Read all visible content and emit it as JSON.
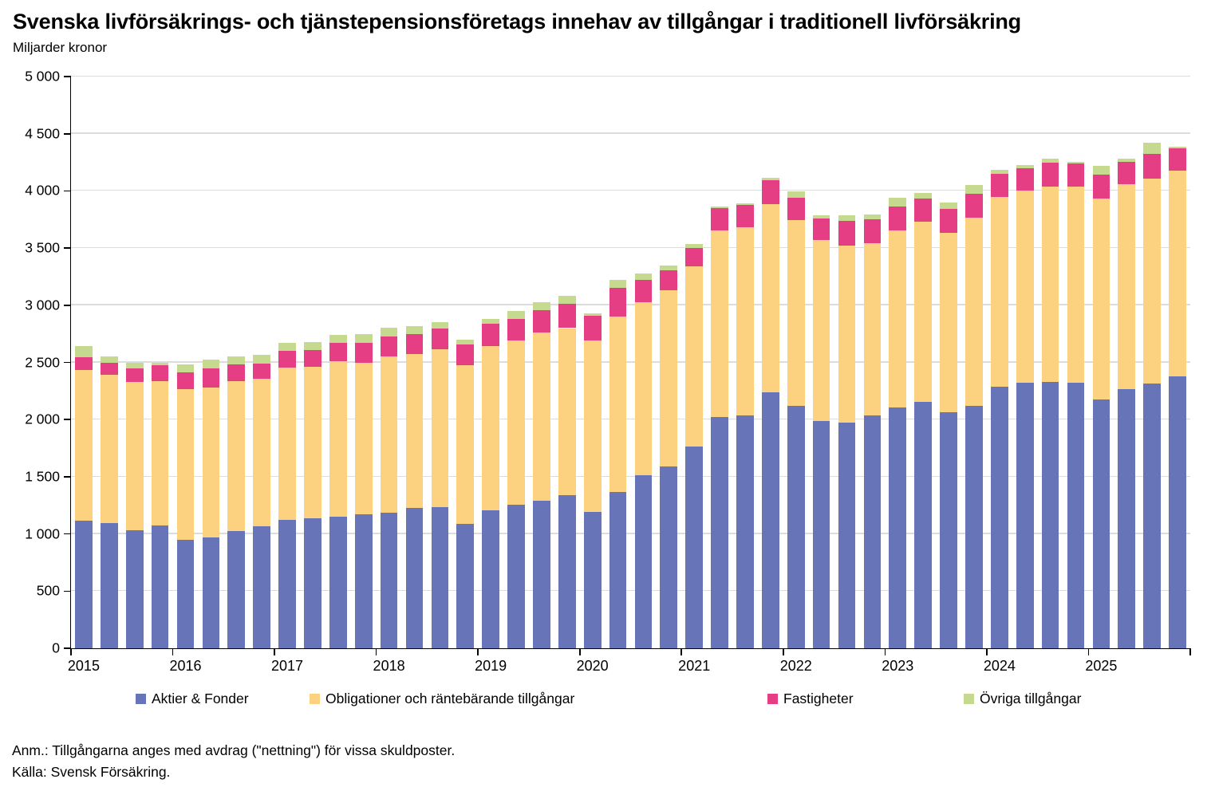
{
  "title": "Svenska livförsäkrings- och tjänstepensionsföretags innehav av tillgångar i traditionell livförsäkring",
  "subtitle": "Miljarder kronor",
  "notes": {
    "line1": "Anm.: Tillgångarna anges med avdrag (\"nettning\") för vissa skuldposter.",
    "line2": "Källa: Svensk Försäkring."
  },
  "colors": {
    "aktier": "#6774B8",
    "obligationer": "#FCD280",
    "fastigheter": "#E63E84",
    "ovriga": "#C5D98F",
    "gridline": "#DCDCDC",
    "axis": "#000000"
  },
  "chart_data": {
    "type": "bar",
    "stacked": true,
    "title": "Svenska livförsäkrings- och tjänstepensionsföretags innehav av tillgångar i traditionell livförsäkring",
    "ylabel": "Miljarder kronor",
    "xlabel": "",
    "ylim": [
      0,
      5000
    ],
    "grid": true,
    "legend_position": "bottom",
    "yticks": [
      0,
      500,
      1000,
      1500,
      2000,
      2500,
      3000,
      3500,
      4000,
      4500,
      5000
    ],
    "ytick_labels": [
      "0",
      "500",
      "1 000",
      "1 500",
      "2 000",
      "2 500",
      "3 000",
      "3 500",
      "4 000",
      "4 500",
      "5 000"
    ],
    "year_labels": [
      "2015",
      "2016",
      "2017",
      "2018",
      "2019",
      "2020",
      "2021",
      "2022",
      "2023",
      "2024",
      "2025"
    ],
    "categories": [
      "2015Q1",
      "2015Q2",
      "2015Q3",
      "2015Q4",
      "2016Q1",
      "2016Q2",
      "2016Q3",
      "2016Q4",
      "2017Q1",
      "2017Q2",
      "2017Q3",
      "2017Q4",
      "2018Q1",
      "2018Q2",
      "2018Q3",
      "2018Q4",
      "2019Q1",
      "2019Q2",
      "2019Q3",
      "2019Q4",
      "2020Q1",
      "2020Q2",
      "2020Q3",
      "2020Q4",
      "2021Q1",
      "2021Q2",
      "2021Q3",
      "2021Q4",
      "2022Q1",
      "2022Q2",
      "2022Q3",
      "2022Q4",
      "2023Q1",
      "2023Q2",
      "2023Q3",
      "2023Q4",
      "2024Q1",
      "2024Q2",
      "2024Q3",
      "2024Q4",
      "2025Q1",
      "2025Q2",
      "2025Q3",
      "2025Q4"
    ],
    "series": [
      {
        "name": "Aktier & Fonder",
        "color": "#6774B8",
        "values": [
          1115,
          1095,
          1035,
          1075,
          950,
          970,
          1025,
          1070,
          1120,
          1135,
          1150,
          1170,
          1185,
          1225,
          1235,
          1085,
          1210,
          1255,
          1290,
          1340,
          1190,
          1370,
          1510,
          1590,
          1765,
          2025,
          2035,
          2240,
          2120,
          1990,
          1975,
          2035,
          2105,
          2155,
          2065,
          2120,
          2290,
          2325,
          2330,
          2320,
          2175,
          2265,
          2315,
          2380
        ]
      },
      {
        "name": "Obligationer och räntebärande tillgångar",
        "color": "#FCD280",
        "values": [
          1320,
          1295,
          1295,
          1260,
          1315,
          1310,
          1310,
          1285,
          1335,
          1330,
          1360,
          1330,
          1370,
          1350,
          1380,
          1390,
          1435,
          1440,
          1475,
          1460,
          1500,
          1530,
          1520,
          1540,
          1575,
          1630,
          1645,
          1645,
          1625,
          1580,
          1550,
          1505,
          1550,
          1575,
          1565,
          1645,
          1655,
          1675,
          1710,
          1715,
          1760,
          1795,
          1795,
          1800
        ]
      },
      {
        "name": "Fastigheter",
        "color": "#E63E84",
        "values": [
          110,
          110,
          120,
          140,
          150,
          165,
          150,
          135,
          145,
          145,
          160,
          170,
          175,
          170,
          180,
          180,
          190,
          185,
          195,
          215,
          215,
          250,
          195,
          175,
          160,
          195,
          195,
          210,
          195,
          190,
          215,
          210,
          210,
          205,
          215,
          210,
          205,
          195,
          205,
          205,
          210,
          195,
          215,
          190
        ]
      },
      {
        "name": "Övriga tillgångar",
        "color": "#C5D98F",
        "values": [
          100,
          50,
          50,
          20,
          70,
          80,
          65,
          75,
          70,
          70,
          70,
          75,
          75,
          75,
          55,
          45,
          45,
          70,
          70,
          65,
          25,
          75,
          50,
          40,
          35,
          15,
          15,
          20,
          55,
          30,
          45,
          45,
          75,
          45,
          55,
          75,
          35,
          30,
          40,
          15,
          75,
          25,
          95,
          15
        ]
      }
    ]
  },
  "legend": {
    "items": [
      {
        "label": "Aktier & Fonder"
      },
      {
        "label": "Obligationer och räntebärande tillgångar"
      },
      {
        "label": "Fastigheter"
      },
      {
        "label": "Övriga tillgångar"
      }
    ]
  }
}
